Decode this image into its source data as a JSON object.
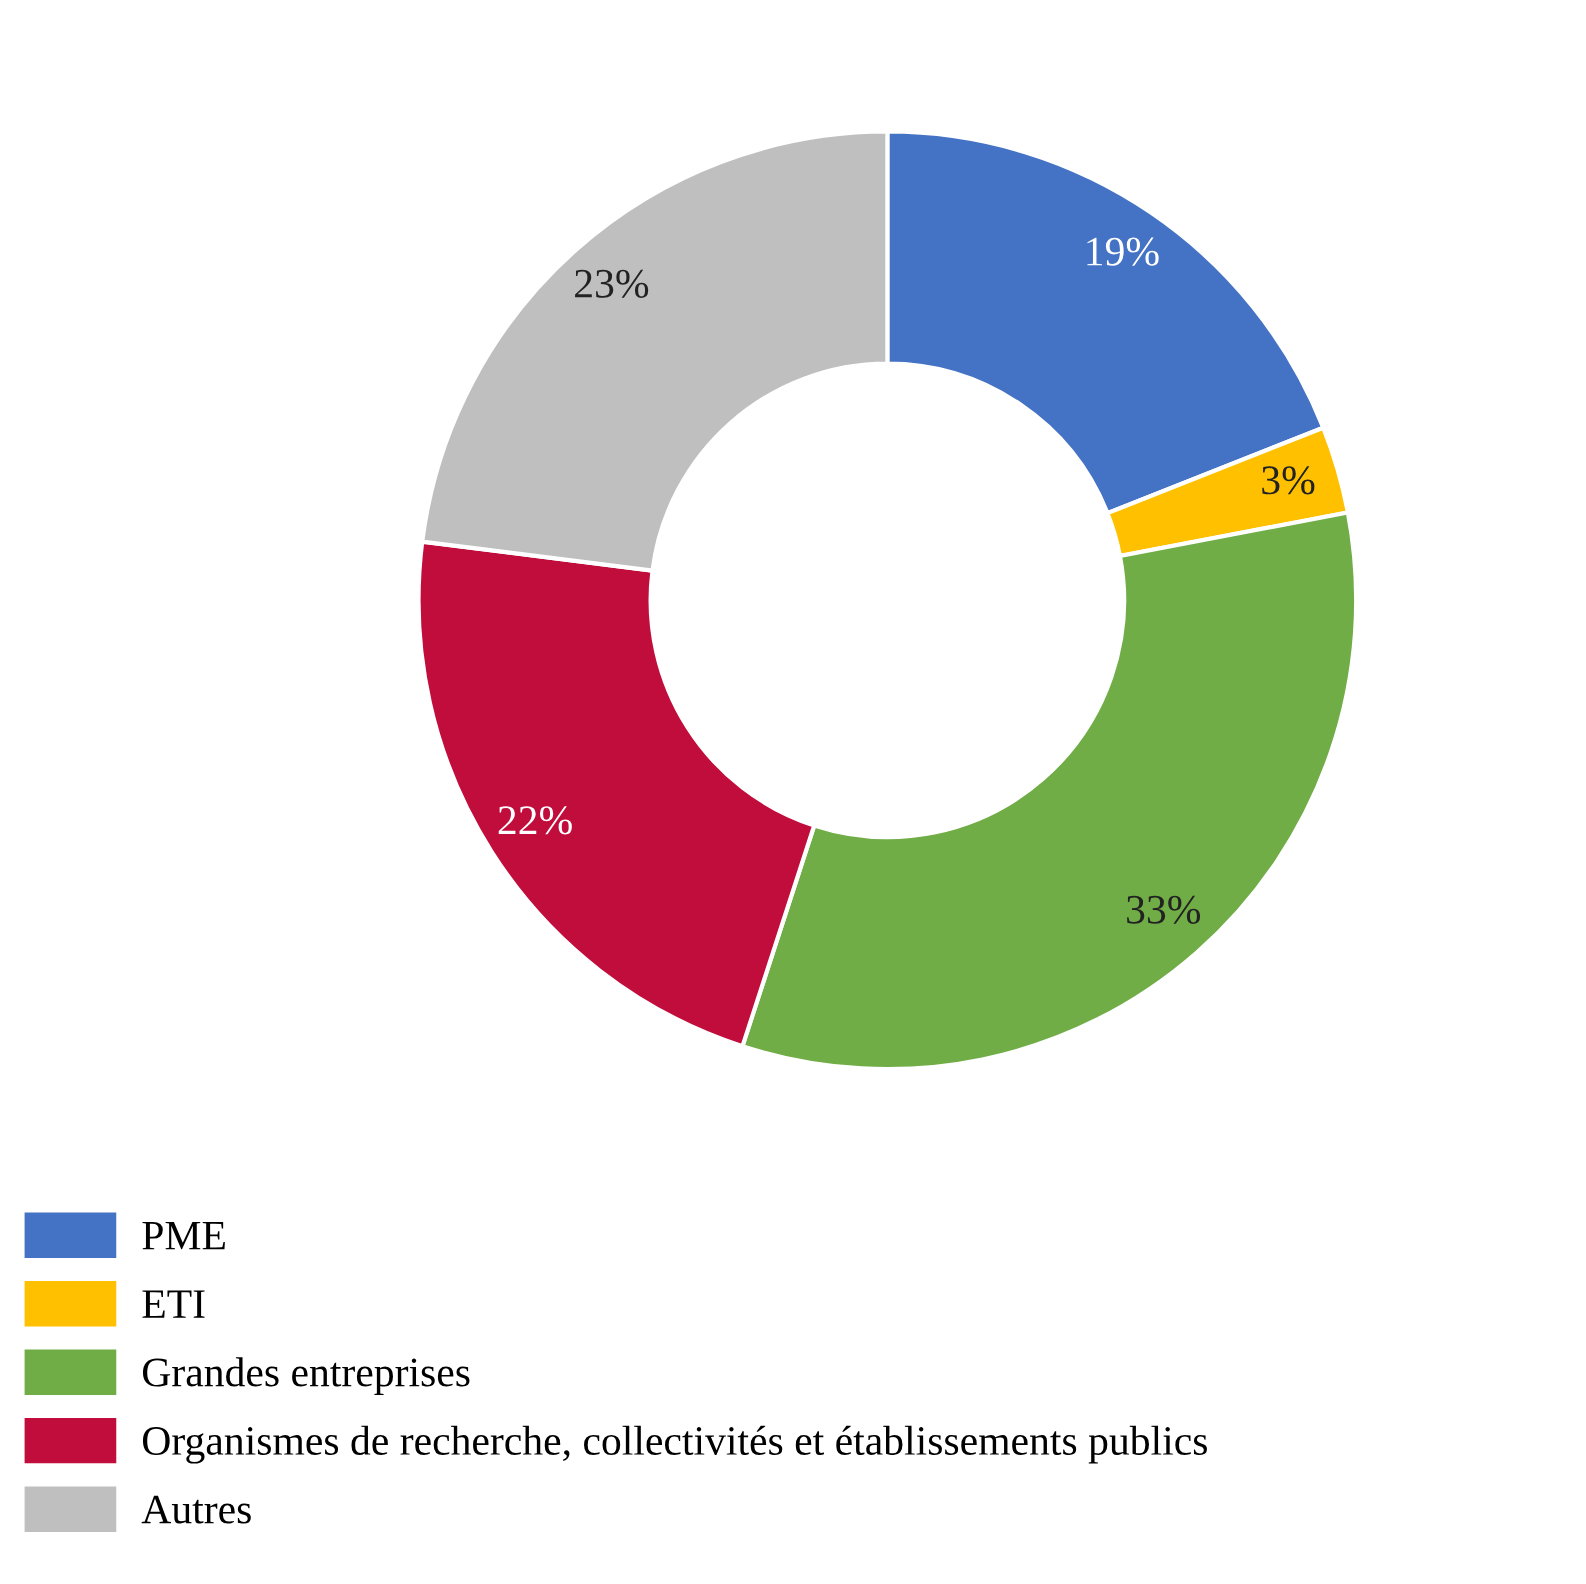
{
  "chart_data": {
    "type": "donut",
    "categories": [
      "PME",
      "ETI",
      "Grandes entreprises",
      "Organismes de recherche, collectivités et établissements publics",
      "Autres"
    ],
    "values": [
      19,
      3,
      33,
      22,
      23
    ],
    "value_labels": [
      "19%",
      "3%",
      "33%",
      "22%",
      "23%"
    ],
    "colors": [
      "#4472c4",
      "#ffc000",
      "#70ad47",
      "#c00d3b",
      "#bfbfbf"
    ],
    "legend": "bottom left"
  }
}
